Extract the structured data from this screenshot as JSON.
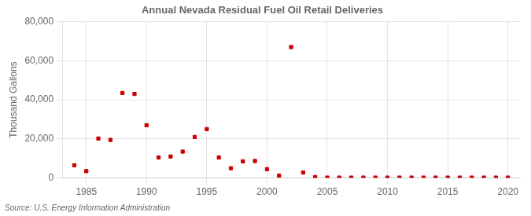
{
  "chart_data": {
    "type": "scatter",
    "title": "Annual Nevada Residual Fuel Oil Retail Deliveries",
    "ylabel": "Thousand Gallons",
    "source": "Source: U.S. Energy Information Administration",
    "x": [
      1984,
      1985,
      1986,
      1987,
      1988,
      1989,
      1990,
      1991,
      1992,
      1993,
      1994,
      1995,
      1996,
      1997,
      1998,
      1999,
      2000,
      2001,
      2002,
      2003,
      2004,
      2005,
      2006,
      2007,
      2008,
      2009,
      2010,
      2011,
      2012,
      2013,
      2014,
      2015,
      2016,
      2017,
      2018,
      2019,
      2020
    ],
    "values": [
      6500,
      3500,
      20200,
      19500,
      43500,
      43000,
      27000,
      10500,
      11000,
      13500,
      21000,
      25000,
      10500,
      5000,
      8500,
      8700,
      4500,
      1200,
      67000,
      2800,
      500,
      200,
      200,
      200,
      200,
      200,
      200,
      200,
      200,
      200,
      200,
      200,
      200,
      200,
      200,
      200,
      200
    ],
    "color": "#cc0000",
    "marker": "square",
    "xlim": [
      1983,
      2021
    ],
    "xticks": [
      1985,
      1990,
      1995,
      2000,
      2005,
      2010,
      2015,
      2020
    ],
    "ylim": [
      0,
      80000
    ],
    "yticks": [
      0,
      {
        "value": 20000,
        "label": "20,000"
      },
      {
        "value": 40000,
        "label": "40,000"
      },
      {
        "value": 60000,
        "label": "60,000"
      },
      {
        "value": 80000,
        "label": "80,000"
      }
    ],
    "grid": true
  }
}
